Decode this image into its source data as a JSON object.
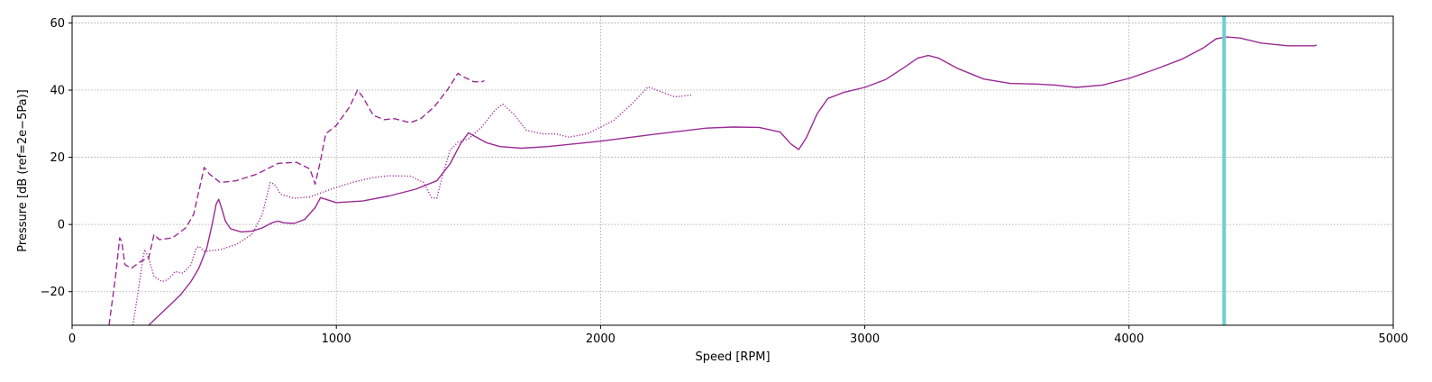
{
  "chart_data": {
    "type": "line",
    "xlabel": "Speed [RPM]",
    "ylabel": "Pressure [dB (ref=2e−5Pa)]",
    "xlim": [
      0,
      5000
    ],
    "ylim": [
      -30,
      62
    ],
    "xticks": [
      0,
      1000,
      2000,
      3000,
      4000,
      5000
    ],
    "yticks": [
      -20,
      0,
      20,
      40,
      60
    ],
    "grid": true,
    "series": [
      {
        "style": "solid",
        "color": "#9b2a94",
        "points": [
          [
            290,
            -30
          ],
          [
            330,
            -27
          ],
          [
            370,
            -24
          ],
          [
            410,
            -21
          ],
          [
            450,
            -17
          ],
          [
            480,
            -13
          ],
          [
            510,
            -7
          ],
          [
            530,
            0
          ],
          [
            545,
            6
          ],
          [
            555,
            7.5
          ],
          [
            565,
            5
          ],
          [
            580,
            1
          ],
          [
            600,
            -1.3
          ],
          [
            640,
            -2.2
          ],
          [
            680,
            -2
          ],
          [
            720,
            -1
          ],
          [
            760,
            0.6
          ],
          [
            780,
            1
          ],
          [
            800,
            0.5
          ],
          [
            840,
            0.3
          ],
          [
            880,
            1.5
          ],
          [
            920,
            5
          ],
          [
            940,
            8
          ],
          [
            960,
            7.5
          ],
          [
            1000,
            6.5
          ],
          [
            1100,
            7
          ],
          [
            1200,
            8.5
          ],
          [
            1300,
            10.5
          ],
          [
            1380,
            13
          ],
          [
            1430,
            18
          ],
          [
            1470,
            24
          ],
          [
            1500,
            27.3
          ],
          [
            1530,
            26
          ],
          [
            1570,
            24.3
          ],
          [
            1620,
            23.2
          ],
          [
            1700,
            22.7
          ],
          [
            1800,
            23.2
          ],
          [
            2000,
            24.8
          ],
          [
            2200,
            26.8
          ],
          [
            2400,
            28.7
          ],
          [
            2500,
            29
          ],
          [
            2600,
            28.9
          ],
          [
            2680,
            27.5
          ],
          [
            2720,
            24
          ],
          [
            2750,
            22.3
          ],
          [
            2780,
            26
          ],
          [
            2820,
            33
          ],
          [
            2860,
            37.5
          ],
          [
            2920,
            39.3
          ],
          [
            3000,
            40.8
          ],
          [
            3080,
            43.2
          ],
          [
            3150,
            46.8
          ],
          [
            3200,
            49.5
          ],
          [
            3240,
            50.3
          ],
          [
            3280,
            49.5
          ],
          [
            3350,
            46.5
          ],
          [
            3450,
            43.3
          ],
          [
            3550,
            42
          ],
          [
            3650,
            41.8
          ],
          [
            3720,
            41.5
          ],
          [
            3800,
            40.8
          ],
          [
            3900,
            41.5
          ],
          [
            4000,
            43.5
          ],
          [
            4100,
            46.2
          ],
          [
            4200,
            49.2
          ],
          [
            4280,
            52.5
          ],
          [
            4330,
            55.3
          ],
          [
            4370,
            55.8
          ],
          [
            4420,
            55.5
          ],
          [
            4500,
            54
          ],
          [
            4600,
            53.2
          ],
          [
            4700,
            53.2
          ],
          [
            4710,
            53.4
          ]
        ]
      },
      {
        "style": "dotted",
        "color": "#9b2a94",
        "points": [
          [
            230,
            -30
          ],
          [
            250,
            -20
          ],
          [
            268,
            -10
          ],
          [
            275,
            -7.5
          ],
          [
            290,
            -10
          ],
          [
            310,
            -15.5
          ],
          [
            340,
            -17
          ],
          [
            360,
            -16.5
          ],
          [
            380,
            -15
          ],
          [
            390,
            -14
          ],
          [
            400,
            -14.2
          ],
          [
            420,
            -14.5
          ],
          [
            450,
            -12
          ],
          [
            470,
            -7
          ],
          [
            480,
            -6.5
          ],
          [
            500,
            -8
          ],
          [
            560,
            -7.5
          ],
          [
            620,
            -6
          ],
          [
            680,
            -3
          ],
          [
            720,
            3
          ],
          [
            750,
            12.5
          ],
          [
            765,
            12
          ],
          [
            790,
            9
          ],
          [
            840,
            7.8
          ],
          [
            900,
            8.2
          ],
          [
            980,
            10.5
          ],
          [
            1060,
            12.5
          ],
          [
            1140,
            14
          ],
          [
            1200,
            14.5
          ],
          [
            1280,
            14.4
          ],
          [
            1330,
            12.5
          ],
          [
            1360,
            8
          ],
          [
            1380,
            7.8
          ],
          [
            1400,
            14
          ],
          [
            1430,
            22
          ],
          [
            1460,
            24.5
          ],
          [
            1500,
            25.5
          ],
          [
            1550,
            29
          ],
          [
            1600,
            34
          ],
          [
            1630,
            35.8
          ],
          [
            1670,
            33
          ],
          [
            1720,
            28
          ],
          [
            1780,
            27
          ],
          [
            1830,
            27
          ],
          [
            1880,
            26
          ],
          [
            1950,
            27
          ],
          [
            2050,
            31
          ],
          [
            2120,
            36
          ],
          [
            2180,
            41
          ],
          [
            2230,
            39.5
          ],
          [
            2280,
            38
          ],
          [
            2340,
            38.5
          ],
          [
            2350,
            38.5
          ]
        ]
      },
      {
        "style": "dashed",
        "color": "#9b2a94",
        "points": [
          [
            140,
            -30
          ],
          [
            165,
            -15
          ],
          [
            180,
            -4
          ],
          [
            188,
            -5
          ],
          [
            200,
            -12
          ],
          [
            225,
            -13
          ],
          [
            260,
            -11
          ],
          [
            290,
            -10
          ],
          [
            310,
            -3
          ],
          [
            330,
            -4.5
          ],
          [
            380,
            -4
          ],
          [
            430,
            -1
          ],
          [
            460,
            3
          ],
          [
            480,
            10
          ],
          [
            500,
            17
          ],
          [
            520,
            15
          ],
          [
            560,
            12.5
          ],
          [
            620,
            13
          ],
          [
            700,
            15
          ],
          [
            780,
            18.2
          ],
          [
            850,
            18.5
          ],
          [
            900,
            16.5
          ],
          [
            920,
            12
          ],
          [
            940,
            19
          ],
          [
            960,
            27
          ],
          [
            1000,
            29.5
          ],
          [
            1050,
            35
          ],
          [
            1080,
            40
          ],
          [
            1100,
            38
          ],
          [
            1140,
            32.5
          ],
          [
            1180,
            31.2
          ],
          [
            1220,
            31.5
          ],
          [
            1280,
            30.3
          ],
          [
            1320,
            31.5
          ],
          [
            1370,
            35
          ],
          [
            1420,
            40
          ],
          [
            1460,
            45
          ],
          [
            1480,
            44
          ],
          [
            1520,
            42.5
          ],
          [
            1550,
            42.5
          ],
          [
            1560,
            42.8
          ]
        ]
      }
    ],
    "vline": {
      "x": 4360,
      "color": "#6ecfcf"
    }
  }
}
